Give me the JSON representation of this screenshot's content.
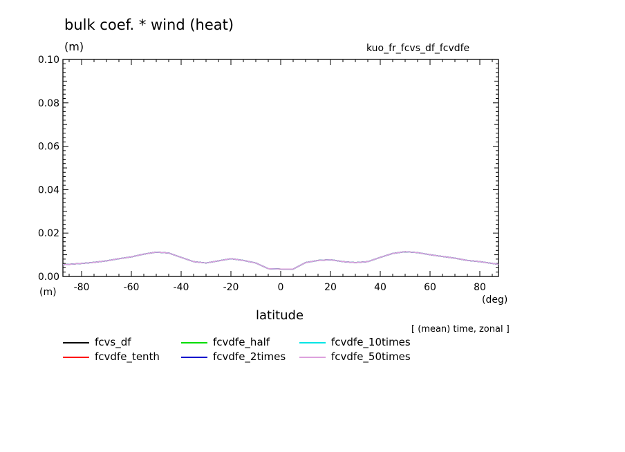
{
  "chart_data": {
    "type": "line",
    "title": "bulk coef. * wind (heat)",
    "experiment": "kuo_fr_fcvs_df_fcvdfe",
    "ylabel": "(m)",
    "ylabel_bottom": "(m)",
    "xlabel": "latitude",
    "xunit": "(deg)",
    "annotation": "[ (mean) time, zonal ]",
    "xlim": [
      -87.5,
      87.5
    ],
    "ylim": [
      0.0,
      0.1
    ],
    "xticks": [
      "-80",
      "-60",
      "-40",
      "-20",
      "0",
      "20",
      "40",
      "60",
      "80"
    ],
    "yticks": [
      "0.00",
      "0.02",
      "0.04",
      "0.06",
      "0.08",
      "0.10"
    ],
    "x": [
      -87.5,
      -80,
      -75,
      -70,
      -65,
      -60,
      -55,
      -50,
      -45,
      -40,
      -35,
      -30,
      -25,
      -20,
      -15,
      -10,
      -5,
      0,
      5,
      10,
      15,
      20,
      25,
      30,
      35,
      40,
      45,
      50,
      55,
      60,
      65,
      70,
      75,
      80,
      87.5
    ],
    "series": [
      {
        "name": "fcvs_df",
        "color": "#000000",
        "values": [
          0.0054,
          0.006,
          0.0065,
          0.0072,
          0.0082,
          0.009,
          0.0103,
          0.0112,
          0.0108,
          0.0088,
          0.0068,
          0.0062,
          0.0072,
          0.0082,
          0.0074,
          0.0062,
          0.0036,
          0.0034,
          0.0034,
          0.0064,
          0.0074,
          0.0077,
          0.0068,
          0.0064,
          0.0068,
          0.0088,
          0.0106,
          0.0114,
          0.011,
          0.01,
          0.0092,
          0.0084,
          0.0074,
          0.0068,
          0.0056
        ]
      },
      {
        "name": "fcvdfe_tenth",
        "color": "#ff0000",
        "values": [
          0.0054,
          0.006,
          0.0065,
          0.0072,
          0.0082,
          0.009,
          0.0103,
          0.0112,
          0.0108,
          0.0088,
          0.0068,
          0.0062,
          0.0072,
          0.0082,
          0.0074,
          0.0062,
          0.0036,
          0.0034,
          0.0034,
          0.0064,
          0.0074,
          0.0077,
          0.0068,
          0.0064,
          0.0068,
          0.0088,
          0.0106,
          0.0114,
          0.011,
          0.01,
          0.0092,
          0.0084,
          0.0074,
          0.0068,
          0.0056
        ]
      },
      {
        "name": "fcvdfe_half",
        "color": "#00dd00",
        "values": [
          0.0054,
          0.006,
          0.0065,
          0.0072,
          0.0082,
          0.009,
          0.0103,
          0.0112,
          0.0108,
          0.0088,
          0.0068,
          0.0062,
          0.0072,
          0.0082,
          0.0074,
          0.0062,
          0.0036,
          0.0034,
          0.0034,
          0.0064,
          0.0074,
          0.0077,
          0.0068,
          0.0064,
          0.0068,
          0.0088,
          0.0106,
          0.0114,
          0.011,
          0.01,
          0.0092,
          0.0084,
          0.0074,
          0.0068,
          0.0056
        ]
      },
      {
        "name": "fcvdfe_2times",
        "color": "#0000cc",
        "values": [
          0.0054,
          0.006,
          0.0065,
          0.0072,
          0.0082,
          0.009,
          0.0103,
          0.0112,
          0.0108,
          0.0088,
          0.0068,
          0.0062,
          0.0072,
          0.0082,
          0.0074,
          0.0062,
          0.0036,
          0.0034,
          0.0034,
          0.0064,
          0.0074,
          0.0077,
          0.0068,
          0.0064,
          0.0068,
          0.0088,
          0.0106,
          0.0114,
          0.011,
          0.01,
          0.0092,
          0.0084,
          0.0074,
          0.0068,
          0.0056
        ]
      },
      {
        "name": "fcvdfe_10times",
        "color": "#00e5e5",
        "values": [
          0.0054,
          0.006,
          0.0065,
          0.0072,
          0.0082,
          0.009,
          0.0103,
          0.0112,
          0.0108,
          0.0088,
          0.0068,
          0.0062,
          0.0072,
          0.0082,
          0.0074,
          0.0062,
          0.0036,
          0.0034,
          0.0034,
          0.0064,
          0.0074,
          0.0077,
          0.0068,
          0.0064,
          0.0068,
          0.0088,
          0.0106,
          0.0114,
          0.011,
          0.01,
          0.0092,
          0.0084,
          0.0074,
          0.0068,
          0.0056
        ]
      },
      {
        "name": "fcvdfe_50times",
        "color": "#dda0dd",
        "values": [
          0.0054,
          0.006,
          0.0065,
          0.0072,
          0.0082,
          0.009,
          0.0103,
          0.0112,
          0.0108,
          0.0088,
          0.0068,
          0.0062,
          0.0072,
          0.0082,
          0.0074,
          0.0062,
          0.0036,
          0.0034,
          0.0034,
          0.0064,
          0.0074,
          0.0077,
          0.0068,
          0.0064,
          0.0068,
          0.0088,
          0.0106,
          0.0114,
          0.011,
          0.01,
          0.0092,
          0.0084,
          0.0074,
          0.0068,
          0.0056
        ]
      }
    ],
    "legend": [
      {
        "label": "fcvs_df",
        "color": "#000000"
      },
      {
        "label": "fcvdfe_half",
        "color": "#00dd00"
      },
      {
        "label": "fcvdfe_10times",
        "color": "#00e5e5"
      },
      {
        "label": "fcvdfe_tenth",
        "color": "#ff0000"
      },
      {
        "label": "fcvdfe_2times",
        "color": "#0000cc"
      },
      {
        "label": "fcvdfe_50times",
        "color": "#dda0dd"
      }
    ],
    "grid": false,
    "legend_placement": "bottom-left"
  }
}
